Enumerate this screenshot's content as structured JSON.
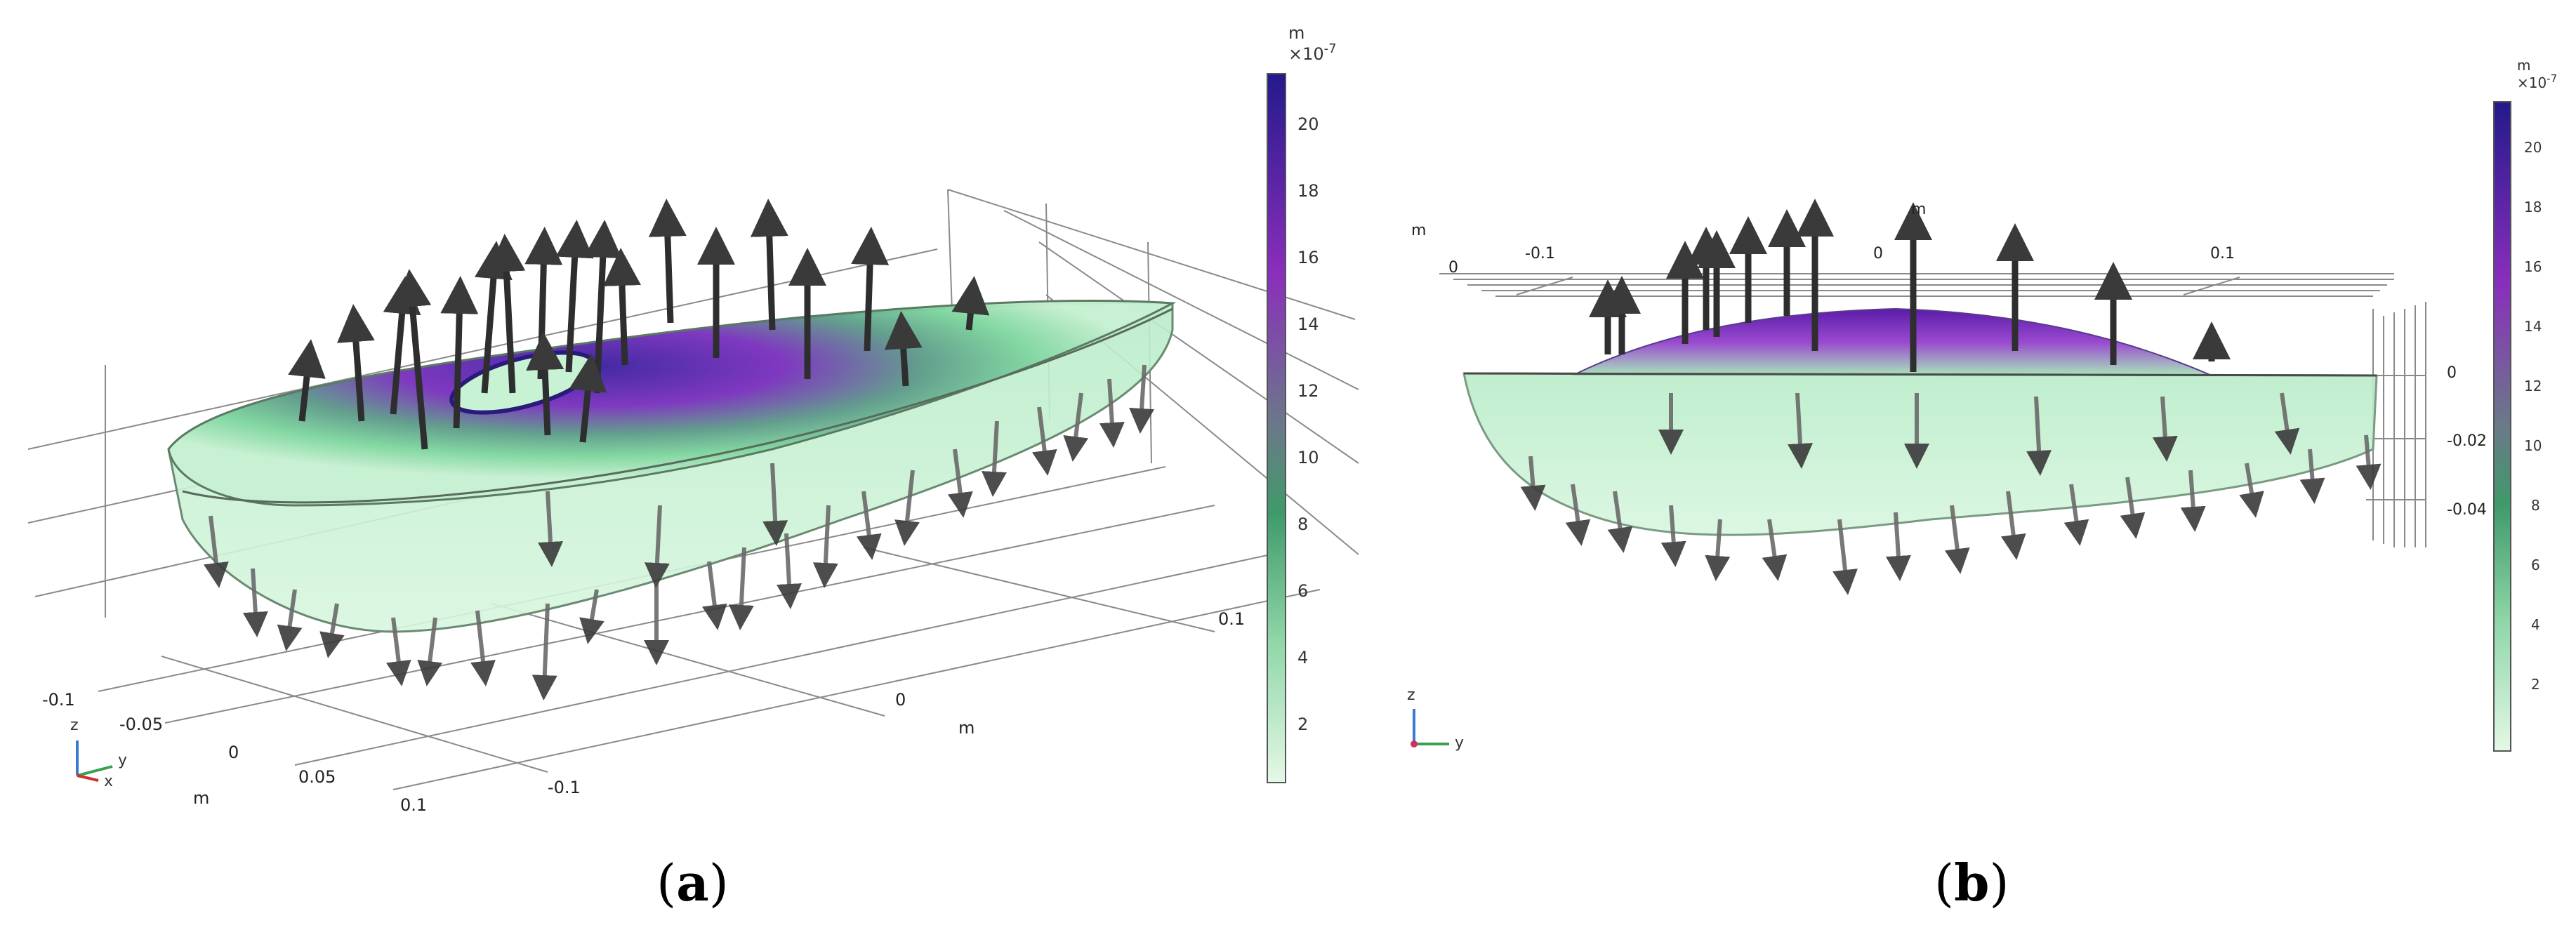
{
  "panels": [
    {
      "label_paren_open": "(",
      "label_letter": "a",
      "label_paren_close": ")",
      "colorbar": {
        "unit": "m",
        "multiplier": "×10",
        "exponent": "-7",
        "ticks": [
          "20",
          "18",
          "16",
          "14",
          "12",
          "10",
          "8",
          "6",
          "4",
          "2"
        ]
      },
      "axes": {
        "x_ticks": [
          "-0.1",
          "-0.05",
          "0",
          "0.05",
          "0.1"
        ],
        "x_unit": "m",
        "y_ticks": [
          "-0.1",
          "0",
          "0.1"
        ],
        "y_unit": "m"
      },
      "triad": {
        "z": "z",
        "y": "y",
        "x": "x"
      }
    },
    {
      "label_paren_open": "(",
      "label_letter": "b",
      "label_paren_close": ")",
      "colorbar": {
        "unit": "m",
        "multiplier": "×10",
        "exponent": "-7",
        "ticks": [
          "20",
          "18",
          "16",
          "14",
          "12",
          "10",
          "8",
          "6",
          "4",
          "2"
        ]
      },
      "axes": {
        "top_unit_left": "m",
        "top_unit_mid": "m",
        "top_ticks": [
          "0",
          "-0.1",
          "0",
          "0.1"
        ],
        "right_ticks": [
          "0",
          "-0.02",
          "-0.04"
        ]
      },
      "triad": {
        "z": "z",
        "y": "y"
      }
    }
  ],
  "colors": {
    "scale_low": "#d6f5dc",
    "scale_mid_green": "#3f9a6a",
    "scale_mid_gray": "#6e7a8c",
    "scale_purple": "#8a2ebc",
    "scale_high": "#2a1a8c",
    "arrow": "#3a3a3a",
    "grid": "#8a8a8a"
  }
}
